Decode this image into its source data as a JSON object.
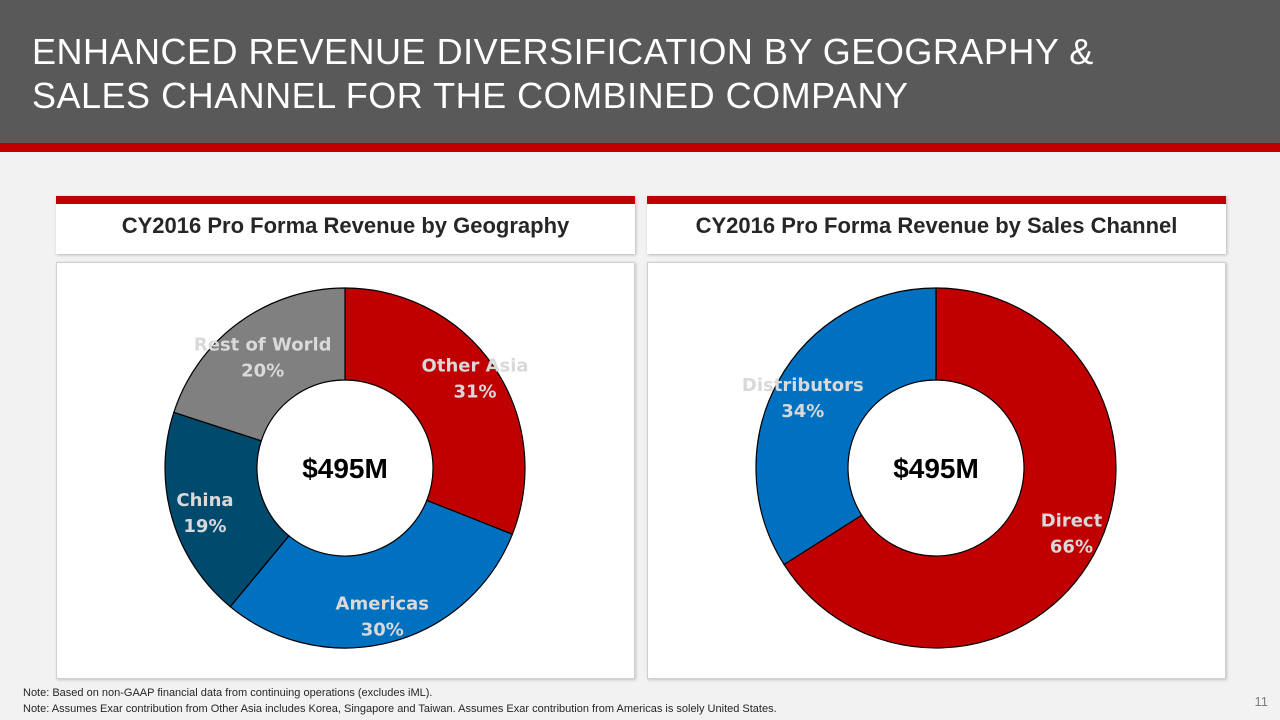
{
  "header": {
    "title_line1": "ENHANCED REVENUE DIVERSIFICATION BY GEOGRAPHY &",
    "title_line2": "SALES CHANNEL FOR THE COMBINED COMPANY"
  },
  "colors": {
    "red": "#c00000",
    "blue": "#0070c0",
    "dark_blue": "#004a6e",
    "gray": "#808080",
    "label_light": "#d9d9d9"
  },
  "chart_data": [
    {
      "type": "pie",
      "variant": "donut",
      "title": "CY2016 Pro Forma Revenue by Geography",
      "center_label": "$495M",
      "categories": [
        "Other Asia",
        "Americas",
        "China",
        "Rest of World"
      ],
      "values": [
        31,
        30,
        19,
        20
      ],
      "value_labels": [
        "31%",
        "30%",
        "19%",
        "20%"
      ],
      "unit": "%",
      "start": "top, clockwise"
    },
    {
      "type": "pie",
      "variant": "donut",
      "title": "CY2016 Pro Forma Revenue by Sales Channel",
      "center_label": "$495M",
      "categories": [
        "Direct",
        "Distributors"
      ],
      "values": [
        66,
        34
      ],
      "value_labels": [
        "66%",
        "34%"
      ],
      "unit": "%",
      "start": "top, clockwise"
    }
  ],
  "notes": [
    "Note: Based on non-GAAP financial data from continuing operations (excludes iML).",
    "Note: Assumes Exar contribution from Other Asia includes Korea, Singapore and Taiwan.  Assumes Exar contribution from Americas is solely United States."
  ],
  "page_number": "11"
}
